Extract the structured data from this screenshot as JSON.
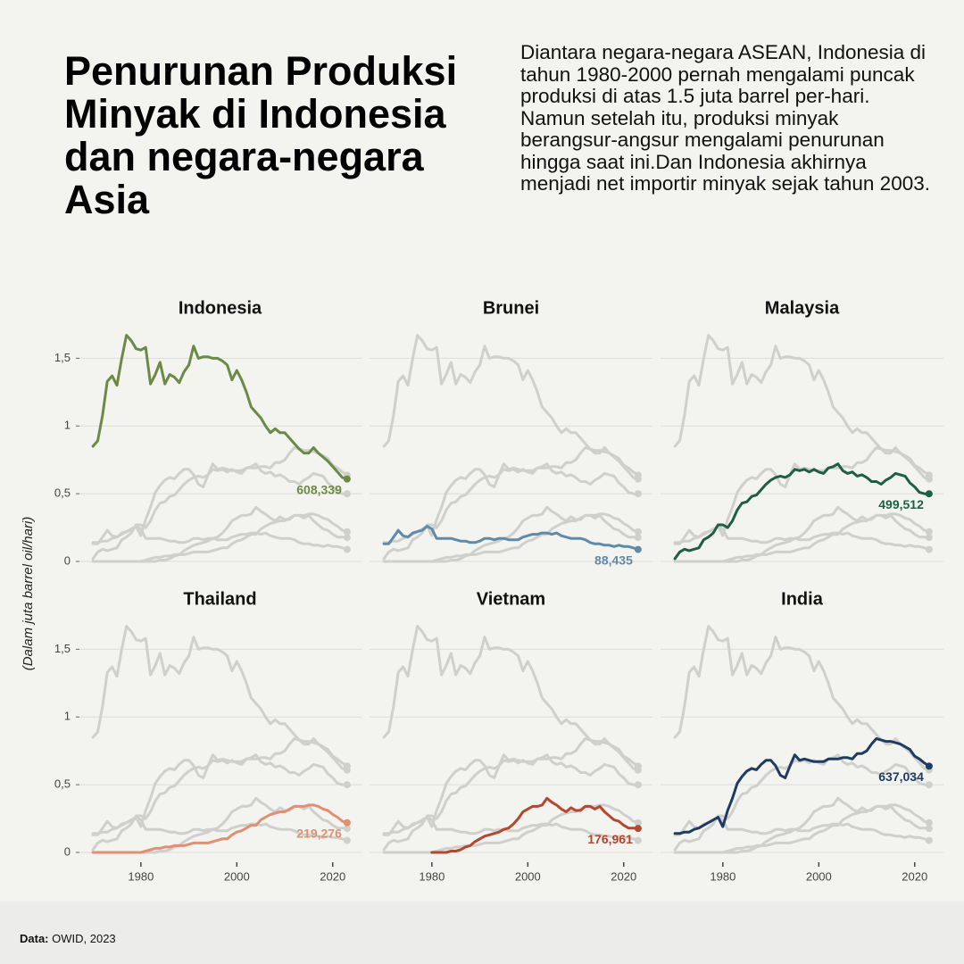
{
  "chart_data": {
    "type": "line",
    "title": "Penurunan Produksi Minyak di Indonesia dan negara-negara Asia",
    "subtitle": "Diantara negara-negara ASEAN, Indonesia di tahun 1980-2000 pernah mengalami puncak produksi di atas 1.5 juta barrel per-hari. Namun setelah itu, produksi minyak berangsur-angsur mengalami penurunan hingga saat ini.Dan Indonesia akhirnya menjadi net importir minyak sejak tahun 2003.",
    "y_label": "(Dalam juta barrel oil/hari)",
    "source_label": "Data:",
    "source": "OWID, 2023",
    "grid": true,
    "xlim": [
      1967,
      2026
    ],
    "xticks": [
      1980,
      2000,
      2020
    ],
    "ylim": [
      0,
      1.7
    ],
    "yticks": [
      0,
      {
        "value": 0.5,
        "label": "0,5"
      },
      1,
      {
        "value": 1.5,
        "label": "1,5"
      }
    ],
    "x": [
      1970,
      1971,
      1972,
      1973,
      1974,
      1975,
      1976,
      1977,
      1978,
      1979,
      1980,
      1981,
      1982,
      1983,
      1984,
      1985,
      1986,
      1987,
      1988,
      1989,
      1990,
      1991,
      1992,
      1993,
      1994,
      1995,
      1996,
      1997,
      1998,
      1999,
      2000,
      2001,
      2002,
      2003,
      2004,
      2005,
      2006,
      2007,
      2008,
      2009,
      2010,
      2011,
      2012,
      2013,
      2014,
      2015,
      2016,
      2017,
      2018,
      2019,
      2020,
      2021,
      2022,
      2023
    ],
    "series": [
      {
        "name": "Indonesia",
        "color": "#6b8a45",
        "value_labels": [
          null,
          null,
          null,
          null,
          null,
          null,
          null,
          null,
          null,
          null,
          null,
          null,
          null,
          null,
          null,
          null,
          null,
          null,
          null,
          null,
          null,
          null,
          null,
          null,
          null,
          null,
          null,
          null,
          null,
          null,
          null,
          null,
          null,
          null,
          null,
          null,
          null,
          null,
          null,
          null,
          null,
          null,
          null,
          null,
          null,
          null,
          null,
          null,
          null,
          null,
          null,
          null,
          null,
          "608,339"
        ],
        "values": [
          0.85,
          0.89,
          1.08,
          1.33,
          1.37,
          1.3,
          1.5,
          1.67,
          1.63,
          1.57,
          1.56,
          1.58,
          1.31,
          1.38,
          1.47,
          1.31,
          1.38,
          1.36,
          1.32,
          1.4,
          1.45,
          1.59,
          1.5,
          1.51,
          1.51,
          1.5,
          1.5,
          1.48,
          1.45,
          1.34,
          1.41,
          1.34,
          1.25,
          1.14,
          1.1,
          1.06,
          1.0,
          0.95,
          0.98,
          0.95,
          0.95,
          0.91,
          0.87,
          0.83,
          0.8,
          0.8,
          0.84,
          0.8,
          0.77,
          0.74,
          0.7,
          0.66,
          0.62,
          0.608339
        ]
      },
      {
        "name": "Brunei",
        "color": "#5f8ba8",
        "value_labels": [
          null,
          null,
          null,
          null,
          null,
          null,
          null,
          null,
          null,
          null,
          null,
          null,
          null,
          null,
          null,
          null,
          null,
          null,
          null,
          null,
          null,
          null,
          null,
          null,
          null,
          null,
          null,
          null,
          null,
          null,
          null,
          null,
          null,
          null,
          null,
          null,
          null,
          null,
          null,
          null,
          null,
          null,
          null,
          null,
          null,
          null,
          null,
          null,
          null,
          null,
          null,
          null,
          null,
          "88,435"
        ],
        "values": [
          0.13,
          0.13,
          0.18,
          0.23,
          0.19,
          0.18,
          0.21,
          0.22,
          0.23,
          0.26,
          0.24,
          0.17,
          0.17,
          0.17,
          0.17,
          0.16,
          0.15,
          0.15,
          0.14,
          0.14,
          0.15,
          0.17,
          0.17,
          0.16,
          0.17,
          0.17,
          0.16,
          0.16,
          0.16,
          0.18,
          0.19,
          0.2,
          0.2,
          0.21,
          0.21,
          0.2,
          0.21,
          0.19,
          0.18,
          0.17,
          0.17,
          0.17,
          0.16,
          0.14,
          0.13,
          0.13,
          0.12,
          0.12,
          0.11,
          0.12,
          0.11,
          0.11,
          0.1,
          0.088435
        ]
      },
      {
        "name": "Malaysia",
        "color": "#1f5e45",
        "value_labels": [
          null,
          null,
          null,
          null,
          null,
          null,
          null,
          null,
          null,
          null,
          null,
          null,
          null,
          null,
          null,
          null,
          null,
          null,
          null,
          null,
          null,
          null,
          null,
          null,
          null,
          null,
          null,
          null,
          null,
          null,
          null,
          null,
          null,
          null,
          null,
          null,
          null,
          null,
          null,
          null,
          null,
          null,
          null,
          null,
          null,
          null,
          null,
          null,
          null,
          null,
          null,
          null,
          null,
          "499,512"
        ],
        "values": [
          0.02,
          0.07,
          0.09,
          0.08,
          0.09,
          0.1,
          0.16,
          0.18,
          0.21,
          0.27,
          0.27,
          0.25,
          0.3,
          0.38,
          0.43,
          0.44,
          0.48,
          0.49,
          0.53,
          0.57,
          0.6,
          0.62,
          0.63,
          0.62,
          0.64,
          0.68,
          0.67,
          0.68,
          0.66,
          0.68,
          0.66,
          0.65,
          0.69,
          0.7,
          0.72,
          0.67,
          0.65,
          0.66,
          0.63,
          0.64,
          0.62,
          0.59,
          0.59,
          0.57,
          0.6,
          0.62,
          0.65,
          0.64,
          0.63,
          0.58,
          0.55,
          0.51,
          0.5,
          0.499512
        ]
      },
      {
        "name": "Thailand",
        "color": "#e09070",
        "value_labels": [
          null,
          null,
          null,
          null,
          null,
          null,
          null,
          null,
          null,
          null,
          null,
          null,
          null,
          null,
          null,
          null,
          null,
          null,
          null,
          null,
          null,
          null,
          null,
          null,
          null,
          null,
          null,
          null,
          null,
          null,
          null,
          null,
          null,
          null,
          null,
          null,
          null,
          null,
          null,
          null,
          null,
          null,
          null,
          null,
          null,
          null,
          null,
          null,
          null,
          null,
          null,
          null,
          null,
          "219,276"
        ],
        "values": [
          0,
          0,
          0,
          0,
          0,
          0,
          0,
          0,
          0,
          0,
          0,
          0.01,
          0.02,
          0.03,
          0.03,
          0.04,
          0.04,
          0.05,
          0.05,
          0.05,
          0.06,
          0.07,
          0.07,
          0.07,
          0.07,
          0.08,
          0.09,
          0.1,
          0.1,
          0.13,
          0.15,
          0.16,
          0.18,
          0.2,
          0.2,
          0.24,
          0.26,
          0.28,
          0.29,
          0.3,
          0.3,
          0.32,
          0.34,
          0.34,
          0.34,
          0.35,
          0.35,
          0.34,
          0.32,
          0.31,
          0.28,
          0.26,
          0.23,
          0.219276
        ]
      },
      {
        "name": "Vietnam",
        "color": "#b5472e",
        "value_labels": [
          null,
          null,
          null,
          null,
          null,
          null,
          null,
          null,
          null,
          null,
          null,
          null,
          null,
          null,
          null,
          null,
          null,
          null,
          null,
          null,
          null,
          null,
          null,
          null,
          null,
          null,
          null,
          null,
          null,
          null,
          null,
          null,
          null,
          null,
          null,
          null,
          null,
          null,
          null,
          null,
          null,
          null,
          null,
          null,
          null,
          null,
          null,
          null,
          null,
          null,
          null,
          null,
          null,
          "176,961"
        ],
        "values": [
          null,
          null,
          null,
          null,
          null,
          null,
          null,
          null,
          null,
          null,
          0,
          0,
          0,
          0,
          0.01,
          0.01,
          0.02,
          0.04,
          0.05,
          0.08,
          0.1,
          0.12,
          0.13,
          0.14,
          0.15,
          0.17,
          0.18,
          0.21,
          0.25,
          0.3,
          0.32,
          0.34,
          0.34,
          0.35,
          0.4,
          0.37,
          0.35,
          0.32,
          0.3,
          0.33,
          0.31,
          0.31,
          0.34,
          0.34,
          0.32,
          0.34,
          0.3,
          0.27,
          0.24,
          0.23,
          0.2,
          0.18,
          0.18,
          0.176961
        ]
      },
      {
        "name": "India",
        "color": "#1f3b63",
        "value_labels": [
          null,
          null,
          null,
          null,
          null,
          null,
          null,
          null,
          null,
          null,
          null,
          null,
          null,
          null,
          null,
          null,
          null,
          null,
          null,
          null,
          null,
          null,
          null,
          null,
          null,
          null,
          null,
          null,
          null,
          null,
          null,
          null,
          null,
          null,
          null,
          null,
          null,
          null,
          null,
          null,
          null,
          null,
          null,
          null,
          null,
          null,
          null,
          null,
          null,
          null,
          null,
          null,
          null,
          "637,034"
        ],
        "values": [
          0.14,
          0.14,
          0.15,
          0.15,
          0.17,
          0.18,
          0.2,
          0.22,
          0.24,
          0.26,
          0.19,
          0.31,
          0.4,
          0.51,
          0.56,
          0.6,
          0.62,
          0.61,
          0.65,
          0.68,
          0.68,
          0.64,
          0.57,
          0.55,
          0.64,
          0.72,
          0.68,
          0.69,
          0.68,
          0.67,
          0.67,
          0.67,
          0.69,
          0.69,
          0.69,
          0.7,
          0.7,
          0.69,
          0.73,
          0.73,
          0.75,
          0.8,
          0.84,
          0.83,
          0.82,
          0.82,
          0.81,
          0.8,
          0.78,
          0.76,
          0.71,
          0.69,
          0.66,
          0.637034
        ]
      }
    ]
  }
}
